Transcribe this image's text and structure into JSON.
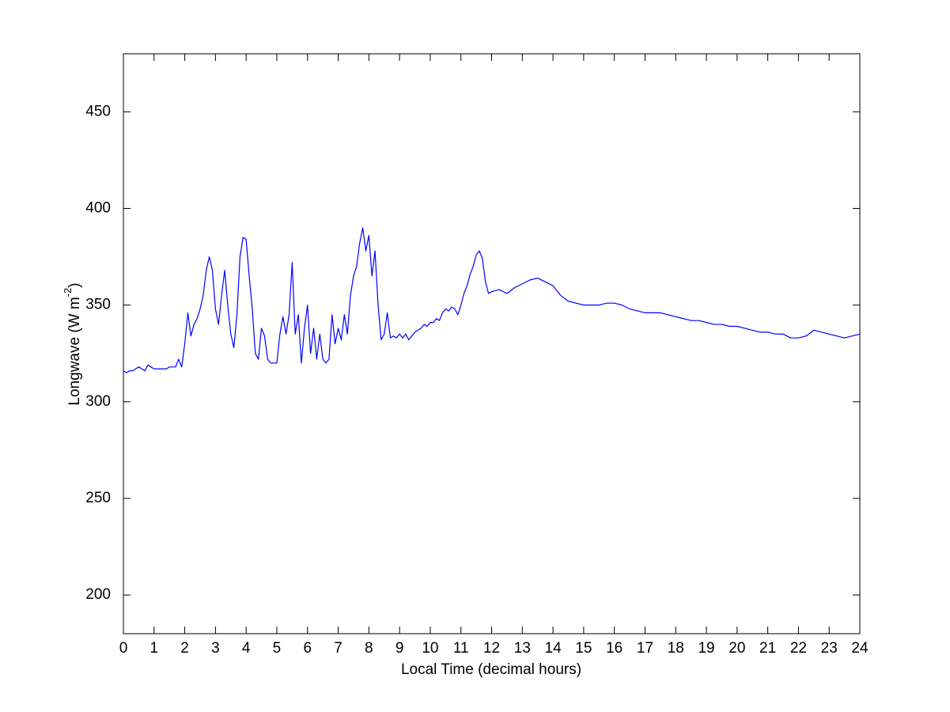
{
  "chart_data": {
    "type": "line",
    "xlabel": "Local Time (decimal hours)",
    "ylabel": [
      "Longwave (W m",
      "-2",
      ")"
    ],
    "xlim": [
      0,
      24
    ],
    "ylim": [
      180,
      480
    ],
    "xticks": [
      0,
      1,
      2,
      3,
      4,
      5,
      6,
      7,
      8,
      9,
      10,
      11,
      12,
      13,
      14,
      15,
      16,
      17,
      18,
      19,
      20,
      21,
      22,
      23,
      24
    ],
    "yticks": [
      200,
      250,
      300,
      350,
      400,
      450
    ],
    "grid": false,
    "x": [
      0,
      0.1,
      0.2,
      0.3,
      0.4,
      0.5,
      0.6,
      0.7,
      0.8,
      0.9,
      1,
      1.1,
      1.2,
      1.3,
      1.4,
      1.5,
      1.6,
      1.7,
      1.8,
      1.9,
      2,
      2.1,
      2.2,
      2.3,
      2.4,
      2.5,
      2.6,
      2.7,
      2.8,
      2.9,
      3,
      3.1,
      3.2,
      3.3,
      3.4,
      3.5,
      3.6,
      3.7,
      3.8,
      3.9,
      4,
      4.1,
      4.2,
      4.3,
      4.4,
      4.5,
      4.6,
      4.7,
      4.8,
      4.9,
      5,
      5.1,
      5.2,
      5.3,
      5.4,
      5.5,
      5.6,
      5.7,
      5.8,
      5.9,
      6,
      6.1,
      6.2,
      6.3,
      6.4,
      6.5,
      6.6,
      6.7,
      6.8,
      6.9,
      7,
      7.1,
      7.2,
      7.3,
      7.4,
      7.5,
      7.6,
      7.7,
      7.8,
      7.9,
      8,
      8.1,
      8.2,
      8.3,
      8.4,
      8.5,
      8.6,
      8.7,
      8.8,
      8.9,
      9,
      9.1,
      9.2,
      9.3,
      9.4,
      9.5,
      9.6,
      9.7,
      9.8,
      9.9,
      10,
      10.1,
      10.2,
      10.3,
      10.4,
      10.5,
      10.6,
      10.7,
      10.8,
      10.9,
      11,
      11.1,
      11.2,
      11.3,
      11.4,
      11.5,
      11.6,
      11.7,
      11.8,
      11.9,
      12,
      12.25,
      12.5,
      12.75,
      13,
      13.25,
      13.5,
      13.75,
      14,
      14.25,
      14.5,
      14.75,
      15,
      15.25,
      15.5,
      15.75,
      16,
      16.25,
      16.5,
      16.75,
      17,
      17.25,
      17.5,
      17.75,
      18,
      18.25,
      18.5,
      18.75,
      19,
      19.25,
      19.5,
      19.75,
      20,
      20.25,
      20.5,
      20.75,
      21,
      21.25,
      21.5,
      21.75,
      22,
      22.25,
      22.5,
      22.75,
      23,
      23.25,
      23.5,
      23.75,
      24
    ],
    "series": [
      {
        "color": "#0000ff",
        "values": [
          316,
          315,
          316,
          316,
          317,
          318,
          317,
          316,
          319,
          318,
          317,
          317,
          317,
          317,
          317,
          318,
          318,
          318,
          322,
          318,
          330,
          346,
          334,
          340,
          343,
          348,
          355,
          368,
          375,
          368,
          348,
          340,
          355,
          368,
          350,
          335,
          328,
          345,
          375,
          385,
          384,
          365,
          348,
          325,
          322,
          338,
          334,
          322,
          320,
          320,
          320,
          335,
          344,
          335,
          345,
          372,
          335,
          345,
          320,
          338,
          350,
          325,
          338,
          322,
          335,
          322,
          320,
          322,
          345,
          330,
          338,
          332,
          345,
          335,
          355,
          365,
          370,
          382,
          390,
          378,
          386,
          365,
          378,
          350,
          332,
          335,
          346,
          333,
          334,
          333,
          335,
          333,
          335,
          332,
          334,
          336,
          337,
          338,
          340,
          339,
          341,
          341,
          343,
          342,
          346,
          348,
          347,
          349,
          348,
          345,
          350,
          356,
          360,
          366,
          370,
          376,
          378,
          374,
          362,
          356,
          357,
          358,
          356,
          359,
          361,
          363,
          364,
          362,
          360,
          355,
          352,
          351,
          350,
          350,
          350,
          351,
          351,
          350,
          348,
          347,
          346,
          346,
          346,
          345,
          344,
          343,
          342,
          342,
          341,
          340,
          340,
          339,
          339,
          338,
          337,
          336,
          336,
          335,
          335,
          333,
          333,
          334,
          337,
          336,
          335,
          334,
          333,
          334,
          335
        ]
      }
    ]
  }
}
